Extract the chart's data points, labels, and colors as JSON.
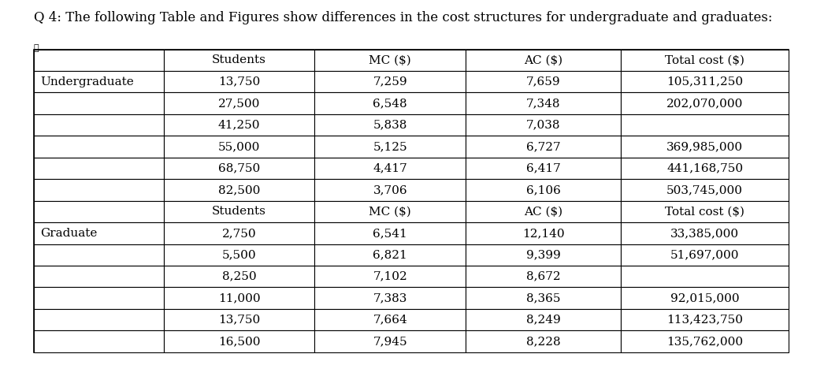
{
  "title": "Q 4: The following Table and Figures show differences in the cost structures for undergraduate and graduates:",
  "title_fontsize": 12,
  "col_headers": [
    "Students",
    "MC ($)",
    "AC ($)",
    "Total cost ($)"
  ],
  "undergrad_label": "Undergraduate",
  "grad_label": "Graduate",
  "undergrad_rows": [
    [
      "13,750",
      "7,259",
      "7,659",
      "105,311,250"
    ],
    [
      "27,500",
      "6,548",
      "7,348",
      "202,070,000"
    ],
    [
      "41,250",
      "5,838",
      "7,038",
      ""
    ],
    [
      "55,000",
      "5,125",
      "6,727",
      "369,985,000"
    ],
    [
      "68,750",
      "4,417",
      "6,417",
      "441,168,750"
    ],
    [
      "82,500",
      "3,706",
      "6,106",
      "503,745,000"
    ]
  ],
  "grad_rows": [
    [
      "2,750",
      "6,541",
      "12,140",
      "33,385,000"
    ],
    [
      "5,500",
      "6,821",
      "9,399",
      "51,697,000"
    ],
    [
      "8,250",
      "7,102",
      "8,672",
      ""
    ],
    [
      "11,000",
      "7,383",
      "8,365",
      "92,015,000"
    ],
    [
      "13,750",
      "7,664",
      "8,249",
      "113,423,750"
    ],
    [
      "16,500",
      "7,945",
      "8,228",
      "135,762,000"
    ]
  ],
  "bg_color": "#ffffff",
  "header_font_size": 11,
  "cell_font_size": 11,
  "label_font_size": 11
}
